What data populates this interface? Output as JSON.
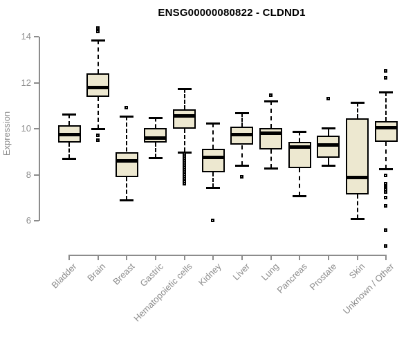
{
  "colors": {
    "title": "#000000",
    "axis": "#8C8C8C",
    "tick_label": "#8C8C8C",
    "box_fill": "#EDE8D0",
    "box_border": "#000000",
    "median": "#000000",
    "whisker": "#000000"
  },
  "chart_data": {
    "type": "boxplot",
    "title": "ENSG00000080822 - CLDND1",
    "xlabel": "",
    "ylabel": "Expression",
    "ylim": [
      6,
      14
    ],
    "yticks": [
      6,
      8,
      10,
      12,
      14
    ],
    "grid": false,
    "legend": false,
    "categories": [
      "Bladder",
      "Brain",
      "Breast",
      "Gastric",
      "Hematopoietic cells",
      "Kidney",
      "Liver",
      "Lung",
      "Pancreas",
      "Prostate",
      "Skin",
      "Unknown / Other"
    ],
    "series": [
      {
        "name": "Bladder",
        "whisker_low": 8.7,
        "q1": 9.4,
        "median": 9.75,
        "q3": 10.15,
        "whisker_high": 10.65,
        "outliers": []
      },
      {
        "name": "Brain",
        "whisker_low": 10.0,
        "q1": 11.4,
        "median": 11.8,
        "q3": 12.4,
        "whisker_high": 13.85,
        "outliers": [
          14.35,
          14.2,
          9.7,
          9.5
        ]
      },
      {
        "name": "Breast",
        "whisker_low": 6.9,
        "q1": 7.9,
        "median": 8.6,
        "q3": 9.0,
        "whisker_high": 10.55,
        "outliers": [
          10.9
        ]
      },
      {
        "name": "Gastric",
        "whisker_low": 8.75,
        "q1": 9.4,
        "median": 9.6,
        "q3": 10.05,
        "whisker_high": 10.5,
        "outliers": []
      },
      {
        "name": "Hematopoietic cells",
        "whisker_low": 9.0,
        "q1": 10.0,
        "median": 10.55,
        "q3": 10.85,
        "whisker_high": 11.75,
        "outliers": [
          8.9,
          8.8,
          8.7,
          8.6,
          8.5,
          8.4,
          8.3,
          8.2,
          8.1,
          8.0,
          7.9,
          7.8,
          7.7,
          7.6
        ]
      },
      {
        "name": "Kidney",
        "whisker_low": 7.45,
        "q1": 8.1,
        "median": 8.75,
        "q3": 9.15,
        "whisker_high": 10.25,
        "outliers": [
          6.0
        ]
      },
      {
        "name": "Liver",
        "whisker_low": 8.4,
        "q1": 9.3,
        "median": 9.75,
        "q3": 10.1,
        "whisker_high": 10.7,
        "outliers": [
          7.9
        ]
      },
      {
        "name": "Lung",
        "whisker_low": 8.3,
        "q1": 9.1,
        "median": 9.8,
        "q3": 10.05,
        "whisker_high": 11.2,
        "outliers": [
          11.45
        ]
      },
      {
        "name": "Pancreas",
        "whisker_low": 7.1,
        "q1": 8.3,
        "median": 9.2,
        "q3": 9.45,
        "whisker_high": 9.9,
        "outliers": []
      },
      {
        "name": "Prostate",
        "whisker_low": 8.4,
        "q1": 8.75,
        "median": 9.3,
        "q3": 9.7,
        "whisker_high": 10.05,
        "outliers": [
          11.3
        ]
      },
      {
        "name": "Skin",
        "whisker_low": 6.1,
        "q1": 7.15,
        "median": 7.9,
        "q3": 10.45,
        "whisker_high": 11.15,
        "outliers": []
      },
      {
        "name": "Unknown / Other",
        "whisker_low": 8.25,
        "q1": 9.45,
        "median": 10.05,
        "q3": 10.35,
        "whisker_high": 11.6,
        "outliers": [
          12.5,
          12.2,
          7.95,
          7.6,
          7.5,
          7.45,
          7.35,
          7.25,
          7.0,
          6.65,
          5.6,
          4.9
        ]
      }
    ]
  }
}
